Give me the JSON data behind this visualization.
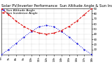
{
  "title": "Solar PV/Inverter Performance  Sun Altitude Angle & Sun Incidence Angle on PV Panels",
  "legend": [
    "Sun Altitude Angle",
    "Sun Incidence Angle"
  ],
  "x_values": [
    6,
    7,
    8,
    9,
    10,
    11,
    12,
    13,
    14,
    15,
    16,
    17,
    18
  ],
  "sun_altitude": [
    0,
    10,
    22,
    34,
    45,
    54,
    57,
    54,
    45,
    34,
    22,
    10,
    0
  ],
  "sun_incidence": [
    90,
    78,
    65,
    55,
    47,
    42,
    40,
    42,
    47,
    55,
    65,
    78,
    90
  ],
  "altitude_color": "#0000dd",
  "incidence_color": "#dd0000",
  "bg_color": "#ffffff",
  "grid_color": "#888888",
  "ylim": [
    0,
    90
  ],
  "xlim": [
    6,
    18
  ],
  "yticks": [
    10,
    20,
    30,
    40,
    50,
    60,
    70,
    80,
    90
  ],
  "xtick_vals": [
    6,
    7,
    8,
    9,
    10,
    11,
    12,
    13,
    14,
    15,
    16,
    17,
    18
  ],
  "xtick_labels": [
    "6h",
    "7h",
    "8h",
    "9h",
    "10h",
    "11h",
    "12h",
    "13h",
    "14h",
    "15h",
    "16h",
    "17h",
    "18h"
  ],
  "title_fontsize": 3.8,
  "legend_fontsize": 3.2,
  "tick_fontsize": 2.8,
  "linewidth": 0.7,
  "markersize": 1.2
}
